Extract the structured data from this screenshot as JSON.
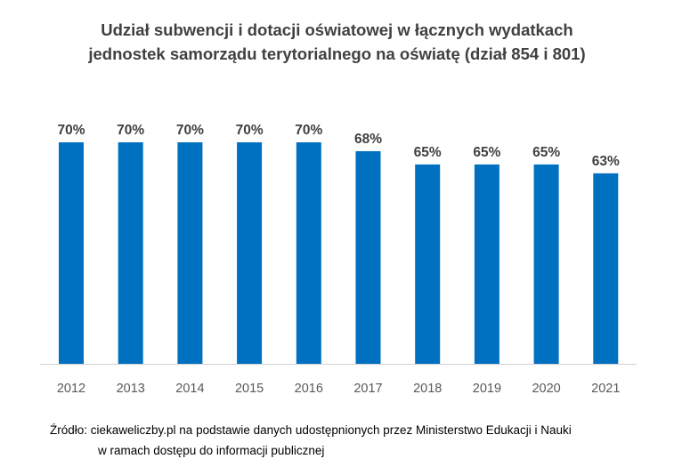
{
  "chart_data": {
    "type": "bar",
    "title_lines": [
      "Udział subwencji i dotacji oświatowej w łącznych wydatkach",
      "jednostek samorządu terytorialnego na oświatę (dział 854 i 801)"
    ],
    "categories": [
      "2012",
      "2013",
      "2014",
      "2015",
      "2016",
      "2017",
      "2018",
      "2019",
      "2020",
      "2021"
    ],
    "values": [
      70,
      70,
      70,
      70,
      70,
      68,
      65,
      65,
      65,
      63
    ],
    "data_labels": [
      "70%",
      "70%",
      "70%",
      "70%",
      "70%",
      "68%",
      "65%",
      "65%",
      "65%",
      "63%"
    ],
    "xlabel": "",
    "ylabel": "",
    "y_axis_shown": false,
    "grid": false,
    "legend": "none",
    "bar_color": "#0070C0"
  },
  "source": {
    "line1": "Źródło: ciekaweliczby.pl na podstawie danych udostępnionych przez Ministerstwo Edukacji i Nauki",
    "line2": "w ramach dostępu do informacji publicznej"
  }
}
